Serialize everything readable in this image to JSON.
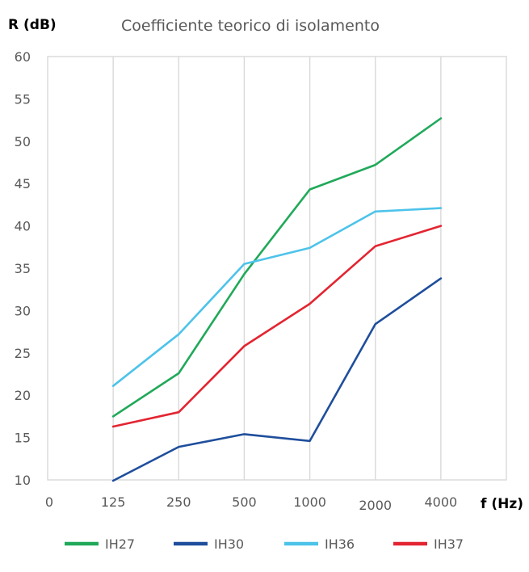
{
  "chart_data": {
    "type": "line",
    "title": "Coefficiente teorico di isolamento",
    "ylabel": "R (dB)",
    "xlabel": "f (Hz)",
    "ylim": [
      10,
      60
    ],
    "yticks": [
      "10",
      "15",
      "20",
      "25",
      "30",
      "35",
      "40",
      "45",
      "50",
      "55",
      "60"
    ],
    "xticks": [
      "0",
      "125",
      "250",
      "500",
      "1000",
      "2000",
      "4000"
    ],
    "categories": [
      "125",
      "250",
      "500",
      "1000",
      "2000",
      "4000"
    ],
    "grid": true,
    "legend_position": "bottom",
    "series": [
      {
        "name": "IH27",
        "color": "#21a95a",
        "values": [
          17.5,
          22.6,
          34.3,
          44.3,
          47.2,
          52.7
        ]
      },
      {
        "name": "IH30",
        "color": "#1f4e9c",
        "values": [
          9.9,
          13.9,
          15.4,
          14.6,
          28.4,
          33.8
        ]
      },
      {
        "name": "IH36",
        "color": "#4dc3ea",
        "values": [
          21.1,
          27.2,
          35.5,
          37.4,
          41.7,
          42.1
        ]
      },
      {
        "name": "IH37",
        "color": "#e32531",
        "values": [
          16.3,
          18.0,
          25.8,
          30.8,
          37.6,
          40.0
        ]
      }
    ]
  }
}
